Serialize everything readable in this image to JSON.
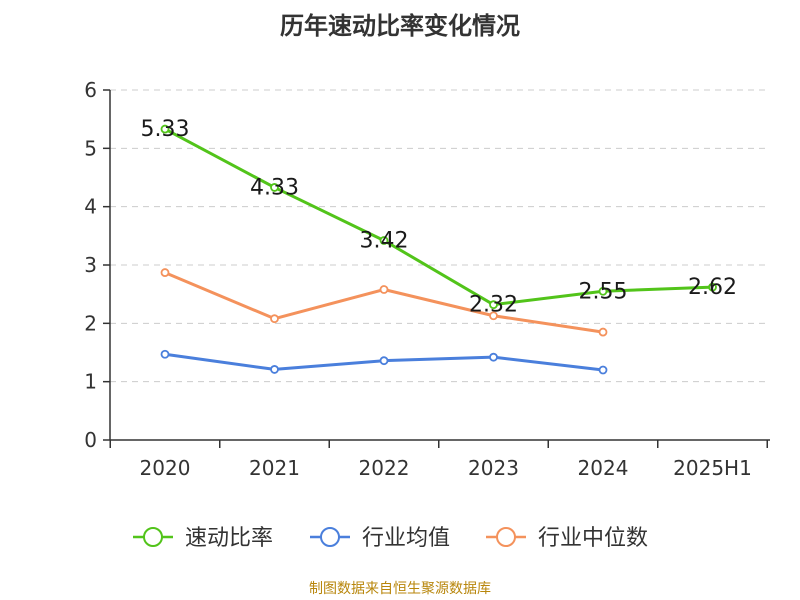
{
  "chart_data": {
    "type": "line",
    "title": "历年速动比率变化情况",
    "categories": [
      "2020",
      "2021",
      "2022",
      "2023",
      "2024",
      "2025H1"
    ],
    "ylim": [
      0,
      6
    ],
    "yticks": [
      0,
      1,
      2,
      3,
      4,
      5,
      6
    ],
    "grid": true,
    "legend_position": "bottom",
    "series": [
      {
        "name": "速动比率",
        "color": "#52c41a",
        "values": [
          5.33,
          4.33,
          3.42,
          2.32,
          2.55,
          2.62
        ],
        "labels": [
          "5.33",
          "4.33",
          "3.42",
          "2.32",
          "2.55",
          "2.62"
        ]
      },
      {
        "name": "行业均值",
        "color": "#4a7fdc",
        "values": [
          1.47,
          1.21,
          1.36,
          1.42,
          1.2,
          null
        ]
      },
      {
        "name": "行业中位数",
        "color": "#f4925c",
        "values": [
          2.87,
          2.08,
          2.58,
          2.13,
          1.85,
          null
        ]
      }
    ]
  },
  "footer": {
    "source": "制图数据来自恒生聚源数据库"
  }
}
